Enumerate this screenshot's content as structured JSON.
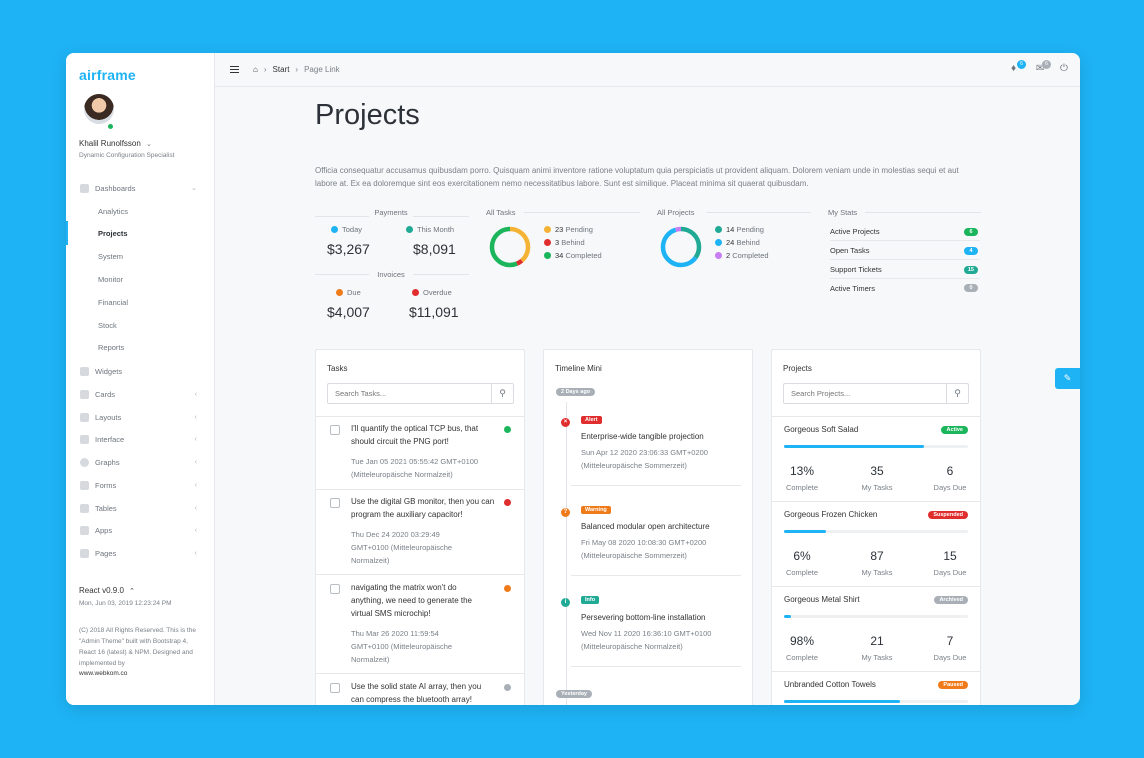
{
  "brand": "airframe",
  "user": {
    "name": "Khalil Runolfsson",
    "role": "Dynamic Configuration Specialist"
  },
  "nav": {
    "dashboards": "Dashboards",
    "dashboard_items": [
      "Analytics",
      "Projects",
      "System",
      "Monitor",
      "Financial",
      "Stock",
      "Reports"
    ],
    "items": [
      "Widgets",
      "Cards",
      "Layouts",
      "Interface",
      "Graphs",
      "Forms",
      "Tables",
      "Apps",
      "Pages"
    ]
  },
  "footer": {
    "version": "React v0.9.0",
    "date": "Mon, Jun 03, 2019 12:23:24 PM",
    "copyright": "(C) 2018 All Rights Reserved. This is the \"Admin Theme\" built with Bootstrap 4, React 16 (latest) & NPM. Designed and implemented by",
    "site": "www.webkom.co"
  },
  "topbar": {
    "breadcrumb": [
      "Start",
      "Page Link"
    ],
    "notifications_count": "6",
    "messages_count": "6"
  },
  "page": {
    "title": "Projects",
    "intro": "Officia consequatur accusamus quibusdam porro. Quisquam animi inventore ratione voluptatum quia perspiciatis ut provident aliquam. Dolorem veniam unde in molestias sequi et aut labore at. Ex ea doloremque sint eos exercitationem nemo necessitatibus labore. Sunt est similique. Placeat minima sit quaerat quibusdam."
  },
  "payments": {
    "heading": "Payments",
    "today_label": "Today",
    "today_value": "$3,267",
    "month_label": "This Month",
    "month_value": "$8,091"
  },
  "invoices": {
    "heading": "Invoices",
    "due_label": "Due",
    "due_value": "$4,007",
    "overdue_label": "Overdue",
    "overdue_value": "$11,091"
  },
  "all_tasks": {
    "heading": "All Tasks",
    "pending": "23",
    "pending_label": "Pending",
    "behind": "3",
    "behind_label": "Behind",
    "completed": "34",
    "completed_label": "Completed"
  },
  "all_projects": {
    "heading": "All Projects",
    "pending": "14",
    "pending_label": "Pending",
    "behind": "24",
    "behind_label": "Behind",
    "completed": "2",
    "completed_label": "Completed"
  },
  "my_stats": {
    "heading": "My Stats",
    "rows": [
      {
        "label": "Active Projects",
        "count": "6",
        "color": "#1bb55c"
      },
      {
        "label": "Open Tasks",
        "count": "4",
        "color": "#1eb3f5"
      },
      {
        "label": "Support Tickets",
        "count": "15",
        "color": "#20a994"
      },
      {
        "label": "Active Timers",
        "count": "0",
        "color": "#a9afb6"
      }
    ]
  },
  "tasks": {
    "title": "Tasks",
    "search_placeholder": "Search Tasks...",
    "items": [
      {
        "text": "I'll quantify the optical TCP bus, that should circuit the PNG port!",
        "meta": "Tue Jan 05 2021 05:55:42 GMT+0100 (Mitteleuropäische Normalzeit)",
        "color": "#1bb55c"
      },
      {
        "text": "Use the digital GB monitor, then you can program the auxiliary capacitor!",
        "meta": "Thu Dec 24 2020 03:29:49 GMT+0100 (Mitteleuropäische Normalzeit)",
        "color": "#e02d2d"
      },
      {
        "text": "navigating the matrix won't do anything, we need to generate the virtual SMS microchip!",
        "meta": "Thu Mar 26 2020 11:59:54 GMT+0100 (Mitteleuropäische Normalzeit)",
        "color": "#f07b1b"
      },
      {
        "text": "Use the solid state AI array, then you can compress the bluetooth array!",
        "meta": "",
        "color": "#a9afb6"
      }
    ]
  },
  "timeline": {
    "title": "Timeline Mini",
    "chip_top": "2 Days ago",
    "chip_bottom": "Yesterday",
    "items": [
      {
        "tag": "Alert",
        "tag_color": "#e02d2d",
        "title": "Enterprise-wide tangible projection",
        "meta": "Sun Apr 12 2020 23:06:33 GMT+0200 (Mitteleuropäische Sommerzeit)"
      },
      {
        "tag": "Warning",
        "tag_color": "#f07b1b",
        "title": "Balanced modular open architecture",
        "meta": "Fri May 08 2020 10:08:30 GMT+0200 (Mitteleuropäische Sommerzeit)"
      },
      {
        "tag": "Info",
        "tag_color": "#20a994",
        "title": "Persevering bottom-line installation",
        "meta": "Wed Nov 11 2020 16:36:10 GMT+0100 (Mitteleuropäische Normalzeit)"
      }
    ]
  },
  "projects": {
    "title": "Projects",
    "search_placeholder": "Search Projects...",
    "complete_label": "Complete",
    "tasks_label": "My Tasks",
    "days_label": "Days Due",
    "items": [
      {
        "name": "Gorgeous Soft Salad",
        "status": "Active",
        "status_color": "#1bb55c",
        "progress": 0.76,
        "complete": "13%",
        "tasks": "35",
        "days": "6"
      },
      {
        "name": "Gorgeous Frozen Chicken",
        "status": "Suspended",
        "status_color": "#e02d2d",
        "progress": 0.23,
        "complete": "6%",
        "tasks": "87",
        "days": "15"
      },
      {
        "name": "Gorgeous Metal Shirt",
        "status": "Archived",
        "status_color": "#a9afb6",
        "progress": 0.04,
        "complete": "98%",
        "tasks": "21",
        "days": "7"
      },
      {
        "name": "Unbranded Cotton Towels",
        "status": "Paused",
        "status_color": "#f07b1b",
        "progress": 0.63,
        "complete": "",
        "tasks": "",
        "days": ""
      }
    ]
  },
  "colors": {
    "accent": "#1eb3f5",
    "green": "#1bb55c",
    "red": "#e02d2d",
    "orange": "#f07b1b",
    "yellow": "#f5b335",
    "teal": "#20a994",
    "purple": "#c77ef2",
    "gray": "#a9afb6"
  }
}
